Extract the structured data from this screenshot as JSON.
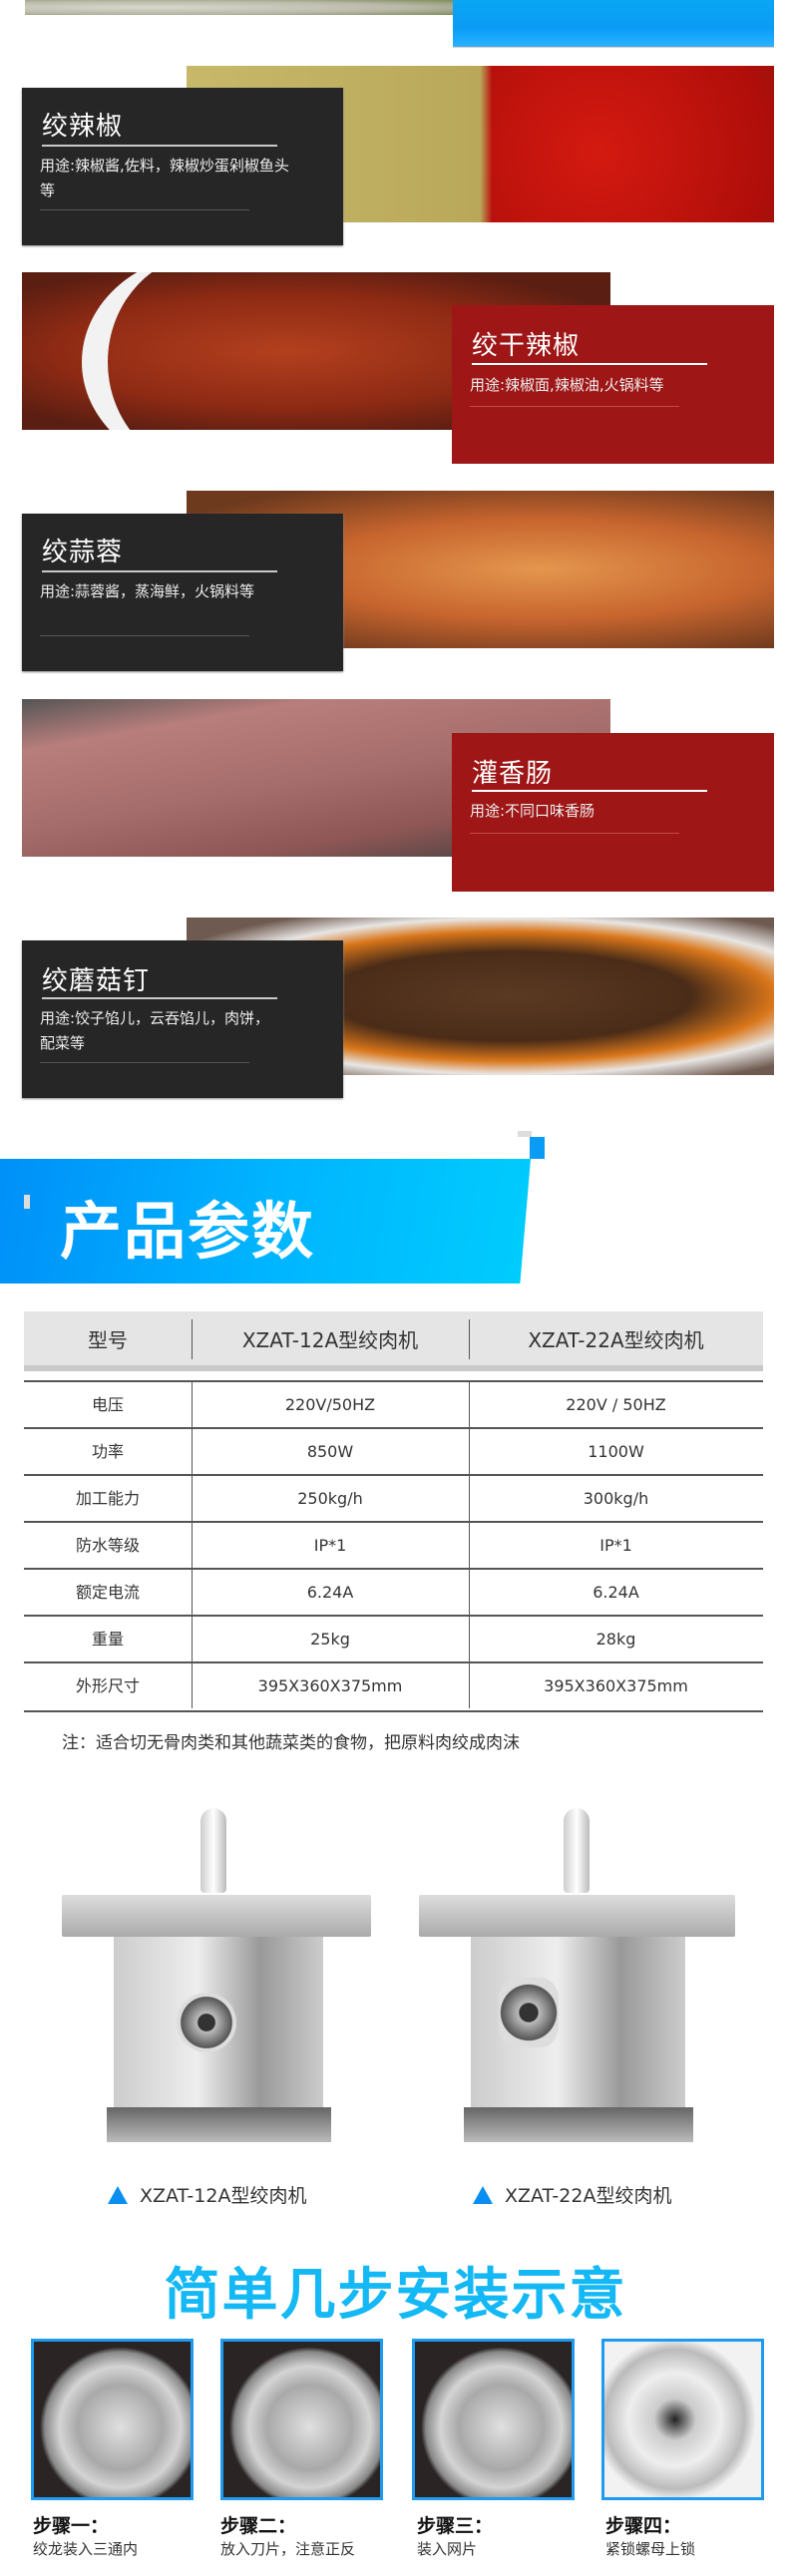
{
  "colors": {
    "dark_card": "#262626",
    "red_card": "#9e1616",
    "blue_accent": "#0a9cf5",
    "title_cyan": "#14b8f5"
  },
  "uses": [
    {
      "title": "绞辣椒",
      "desc": "用途:辣椒酱,佐料，辣椒炒蛋剁椒鱼头等",
      "style": "dark"
    },
    {
      "title": "绞干辣椒",
      "desc": "用途:辣椒面,辣椒油,火锅料等",
      "style": "red"
    },
    {
      "title": "绞蒜蓉",
      "desc": "用途:蒜蓉酱，蒸海鲜，火锅料等",
      "style": "dark"
    },
    {
      "title": "灌香肠",
      "desc": "用途:不同口味香肠",
      "style": "red"
    },
    {
      "title": "绞蘑菇钉",
      "desc": "用途:饺子馅儿，云吞馅儿，肉饼，配菜等",
      "style": "dark"
    }
  ],
  "params": {
    "title": "产品参数",
    "header": [
      "型号",
      "XZAT-12A型绞肉机",
      "XZAT-22A型绞肉机"
    ],
    "rows": [
      [
        "电压",
        "220V/50HZ",
        "220V / 50HZ"
      ],
      [
        "功率",
        "850W",
        "1100W"
      ],
      [
        "加工能力",
        "250kg/h",
        "300kg/h"
      ],
      [
        "防水等级",
        "IP*1",
        "IP*1"
      ],
      [
        "额定电流",
        "6.24A",
        "6.24A"
      ],
      [
        "重量",
        "25kg",
        "28kg"
      ],
      [
        "外形尺寸",
        "395X360X375mm",
        "395X360X375mm"
      ]
    ],
    "note": "注：适合切无骨肉类和其他蔬菜类的食物，把原料肉绞成肉沫"
  },
  "products": [
    {
      "caption": "XZAT-12A型绞肉机",
      "icon": "triangle-up-icon"
    },
    {
      "caption": "XZAT-22A型绞肉机",
      "icon": "triangle-up-icon"
    }
  ],
  "install": {
    "title": "简单几步安装示意",
    "steps": [
      {
        "title": "步骤一：",
        "desc": "绞龙装入三通内"
      },
      {
        "title": "步骤二：",
        "desc": "放入刀片，注意正反"
      },
      {
        "title": "步骤三：",
        "desc": "装入网片"
      },
      {
        "title": "步骤四：",
        "desc": "紧锁螺母上锁"
      }
    ]
  }
}
